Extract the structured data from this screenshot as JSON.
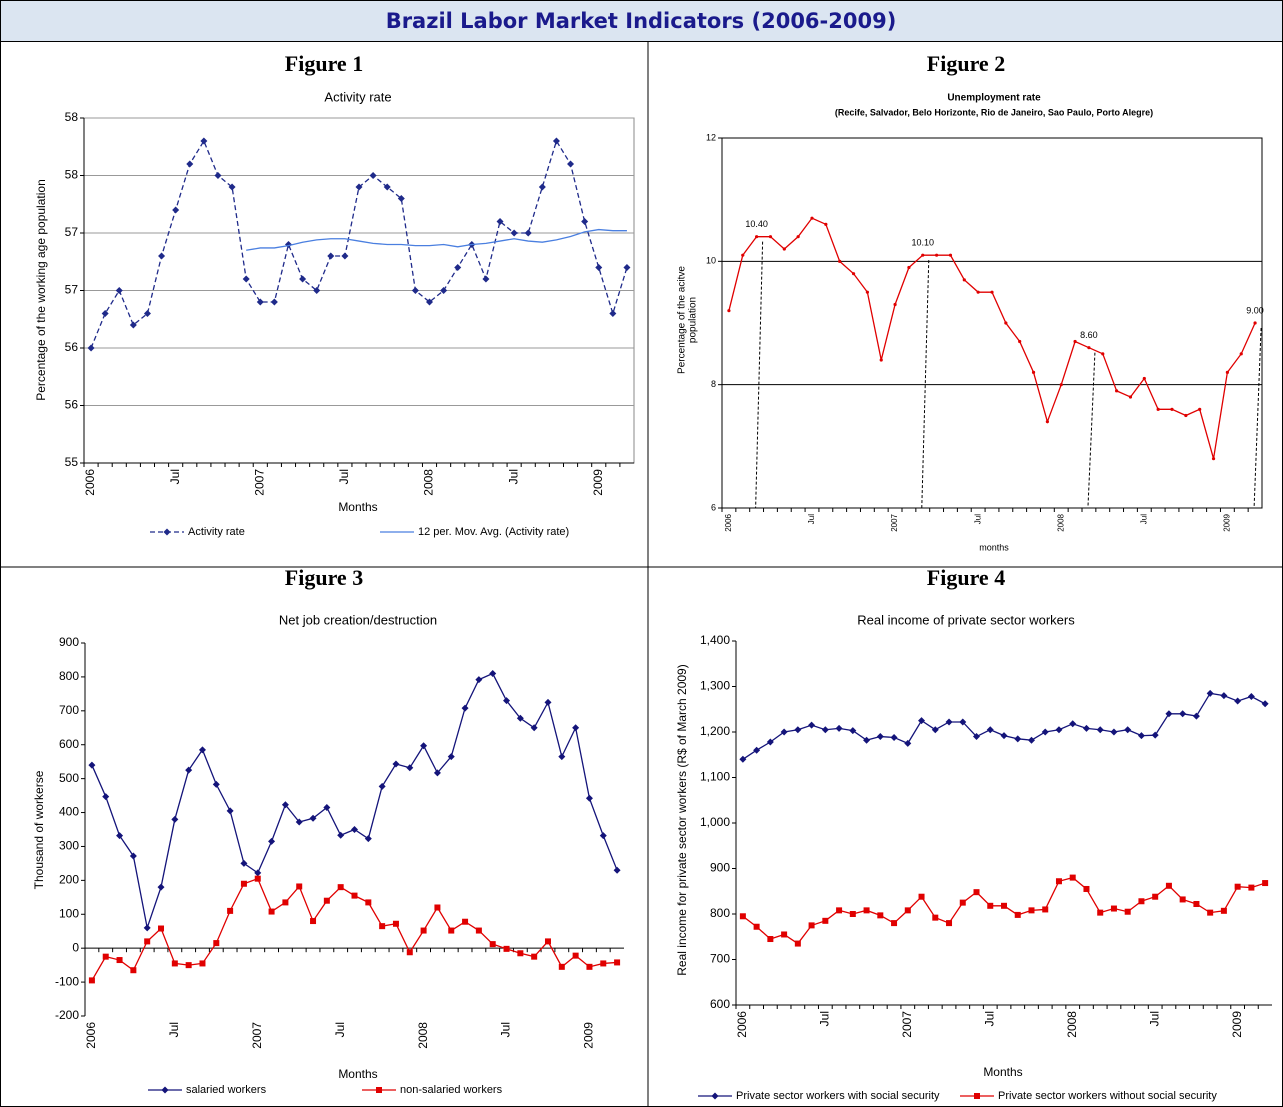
{
  "title": "Brazil Labor Market Indicators (2006-2009)",
  "chart_data": [
    {
      "type": "line",
      "figure": "Figure 1",
      "title": "Activity rate",
      "y_label": "Percentage of the working age population",
      "x_label": "Months",
      "categories": [
        "2006",
        null,
        null,
        null,
        null,
        null,
        "Jul",
        null,
        null,
        null,
        null,
        null,
        "2007",
        null,
        null,
        null,
        null,
        null,
        "Jul",
        null,
        null,
        null,
        null,
        null,
        "2008",
        null,
        null,
        null,
        null,
        null,
        "Jul",
        null,
        null,
        null,
        null,
        null,
        "2009",
        null,
        null
      ],
      "ylim": [
        55,
        58
      ],
      "yticks": [
        55,
        {
          "value": 55.5,
          "label": "56"
        },
        56,
        {
          "value": 56.5,
          "label": "57"
        },
        57,
        {
          "value": 57.5,
          "label": "58"
        },
        58
      ],
      "grid": true,
      "series": [
        {
          "name": "Activity rate",
          "color": "#1f2a8a",
          "dash": true,
          "marker": "diamond",
          "values": [
            56.0,
            56.3,
            56.5,
            56.2,
            56.3,
            56.8,
            57.2,
            57.6,
            57.8,
            57.5,
            57.4,
            56.6,
            56.4,
            56.4,
            56.9,
            56.6,
            56.5,
            56.8,
            56.8,
            57.4,
            57.5,
            57.4,
            57.3,
            56.5,
            56.4,
            56.5,
            56.7,
            56.9,
            56.6,
            57.1,
            57.0,
            57.0,
            57.4,
            57.8,
            57.6,
            57.1,
            56.7,
            56.3,
            56.7
          ]
        },
        {
          "name": "12 per. Mov. Avg. (Activity rate)",
          "color": "#4a7fe0",
          "dash": false,
          "marker": "none",
          "values": [
            null,
            null,
            null,
            null,
            null,
            null,
            null,
            null,
            null,
            null,
            null,
            56.85,
            56.87,
            56.87,
            56.89,
            56.92,
            56.94,
            56.95,
            56.95,
            56.93,
            56.91,
            56.9,
            56.9,
            56.89,
            56.89,
            56.9,
            56.88,
            56.9,
            56.91,
            56.93,
            56.95,
            56.93,
            56.92,
            56.94,
            56.97,
            57.01,
            57.03,
            57.02,
            57.02
          ]
        }
      ]
    },
    {
      "type": "line",
      "figure": "Figure 2",
      "title": "Unemployment rate",
      "subtitle": "(Recife, Salvador, Belo Horizonte, Rio de Janeiro, Sao Paulo, Porto Alegre)",
      "y_label": [
        "Percentage of the acitve",
        "population"
      ],
      "x_label": "months",
      "categories": [
        "2006",
        null,
        null,
        null,
        null,
        null,
        "Jul",
        null,
        null,
        null,
        null,
        null,
        "2007",
        null,
        null,
        null,
        null,
        null,
        "Jul",
        null,
        null,
        null,
        null,
        null,
        "2008",
        null,
        null,
        null,
        null,
        null,
        "Jul",
        null,
        null,
        null,
        null,
        null,
        "2009",
        null,
        null
      ],
      "ylim": [
        6,
        12
      ],
      "yticks": [
        6,
        8,
        10,
        12
      ],
      "grid": true,
      "color": "#e00000",
      "marker": "dot",
      "values": [
        9.2,
        10.1,
        10.4,
        10.4,
        10.2,
        10.4,
        10.7,
        10.6,
        10.0,
        9.8,
        9.5,
        8.4,
        9.3,
        9.9,
        10.1,
        10.1,
        10.1,
        9.7,
        9.5,
        9.5,
        9.0,
        8.7,
        8.2,
        7.4,
        8.0,
        8.7,
        8.6,
        8.5,
        7.9,
        7.8,
        8.1,
        7.6,
        7.6,
        7.5,
        7.6,
        6.8,
        8.2,
        8.5,
        9.0
      ],
      "data_labels": [
        {
          "index": 2,
          "label": "10.40"
        },
        {
          "index": 14,
          "label": "10.10"
        },
        {
          "index": 26,
          "label": "8.60"
        },
        {
          "index": 38,
          "label": "9.00"
        }
      ]
    },
    {
      "type": "line",
      "figure": "Figure 3",
      "title": "Net job creation/destruction",
      "y_label": "Thousand of workerse",
      "x_label": "Months",
      "categories": [
        "2006",
        null,
        null,
        null,
        null,
        null,
        "Jul",
        null,
        null,
        null,
        null,
        null,
        "2007",
        null,
        null,
        null,
        null,
        null,
        "Jul",
        null,
        null,
        null,
        null,
        null,
        "2008",
        null,
        null,
        null,
        null,
        null,
        "Jul",
        null,
        null,
        null,
        null,
        null,
        "2009",
        null,
        null
      ],
      "ylim": [
        -200,
        900
      ],
      "yticks": [
        -200,
        -100,
        0,
        100,
        200,
        300,
        400,
        500,
        600,
        700,
        800,
        900
      ],
      "grid": false,
      "series": [
        {
          "name": "salaried workers",
          "color": "#14147a",
          "dash": false,
          "marker": "diamond",
          "values": [
            540,
            447,
            332,
            272,
            60,
            180,
            380,
            525,
            585,
            483,
            405,
            250,
            222,
            315,
            423,
            372,
            383,
            415,
            333,
            350,
            323,
            477,
            543,
            532,
            597,
            517,
            565,
            708,
            792,
            810,
            730,
            678,
            650,
            725,
            565,
            650,
            442,
            332,
            230
          ]
        },
        {
          "name": "non-salaried workers",
          "color": "#e00000",
          "dash": false,
          "marker": "square",
          "values": [
            -95,
            -25,
            -35,
            -65,
            20,
            58,
            -45,
            -50,
            -45,
            15,
            110,
            190,
            205,
            108,
            135,
            182,
            80,
            140,
            180,
            155,
            135,
            65,
            72,
            -12,
            52,
            120,
            52,
            78,
            52,
            12,
            -2,
            -15,
            -25,
            20,
            -55,
            -22,
            -55,
            -45,
            -42
          ]
        }
      ]
    },
    {
      "type": "line",
      "figure": "Figure 4",
      "title": "Real income of private sector workers",
      "y_label": "Real income for private sector workers  (R$ of March 2009)",
      "x_label": "Months",
      "categories": [
        "2006",
        null,
        null,
        null,
        null,
        null,
        "Jul",
        null,
        null,
        null,
        null,
        null,
        "2007",
        null,
        null,
        null,
        null,
        null,
        "Jul",
        null,
        null,
        null,
        null,
        null,
        "2008",
        null,
        null,
        null,
        null,
        null,
        "Jul",
        null,
        null,
        null,
        null,
        null,
        "2009",
        null,
        null
      ],
      "ylim": [
        600,
        1400
      ],
      "yticks": [
        600,
        700,
        800,
        900,
        {
          "value": 1000,
          "label": "1,000"
        },
        {
          "value": 1100,
          "label": "1,100"
        },
        {
          "value": 1200,
          "label": "1,200"
        },
        {
          "value": 1300,
          "label": "1,300"
        },
        {
          "value": 1400,
          "label": "1,400"
        }
      ],
      "grid": false,
      "series": [
        {
          "name": "Private sector workers with social security",
          "color": "#14147a",
          "dash": false,
          "marker": "diamond",
          "values": [
            1140,
            1160,
            1178,
            1200,
            1205,
            1215,
            1205,
            1208,
            1203,
            1182,
            1190,
            1188,
            1175,
            1225,
            1205,
            1222,
            1222,
            1190,
            1205,
            1192,
            1185,
            1182,
            1200,
            1205,
            1218,
            1208,
            1205,
            1200,
            1205,
            1192,
            1193,
            1240,
            1240,
            1235,
            1285,
            1280,
            1268,
            1278,
            1262
          ]
        },
        {
          "name": "Private sector workers without social security",
          "color": "#e00000",
          "dash": false,
          "marker": "square",
          "values": [
            795,
            772,
            745,
            755,
            735,
            775,
            785,
            808,
            800,
            808,
            797,
            780,
            808,
            838,
            792,
            780,
            825,
            848,
            818,
            818,
            798,
            808,
            810,
            872,
            880,
            855,
            803,
            812,
            805,
            828,
            838,
            862,
            832,
            822,
            803,
            807,
            860,
            858,
            868
          ]
        }
      ]
    }
  ]
}
